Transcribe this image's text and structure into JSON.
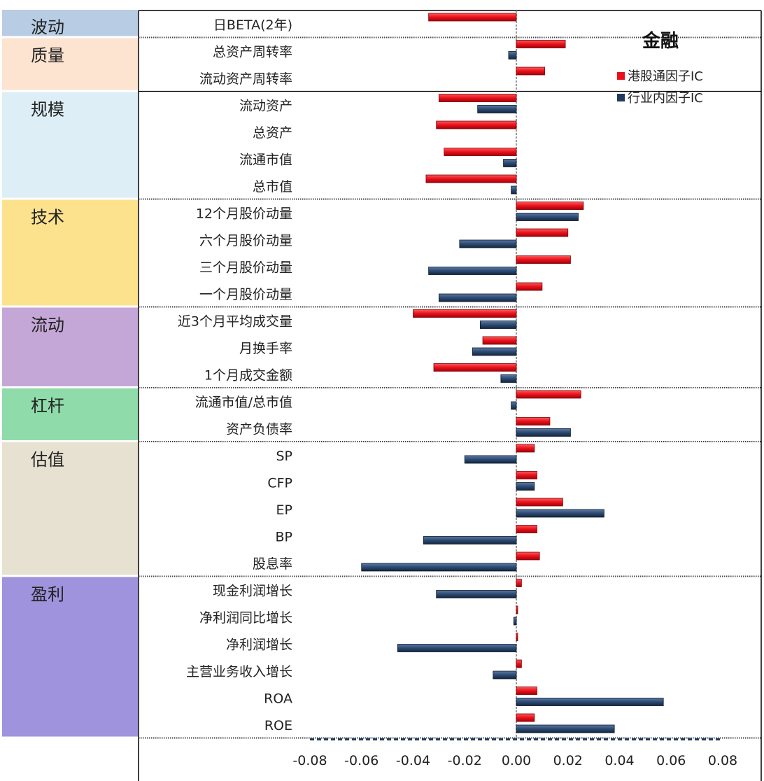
{
  "chart_data": {
    "type": "bar",
    "orientation": "horizontal",
    "title": "金融",
    "xlim": [
      -0.08,
      0.08
    ],
    "x_ticks": [
      "-0.08",
      "-0.06",
      "-0.04",
      "-0.02",
      "0.00",
      "0.02",
      "0.04",
      "0.06",
      "0.08"
    ],
    "x_tick_values": [
      -0.08,
      -0.06,
      -0.04,
      -0.02,
      0.0,
      0.02,
      0.04,
      0.06,
      0.08
    ],
    "legend_position": "top-right",
    "categories": [
      "日BETA(2年)",
      "总资产周转率",
      "流动资产周转率",
      "流动资产",
      "总资产",
      "流通市值",
      "总市值",
      "12个月股价动量",
      "六个月股价动量",
      "三个月股价动量",
      "一个月股价动量",
      "近3个月平均成交量",
      "月换手率",
      "1个月成交金额",
      "流通市值/总市值",
      "资产负债率",
      "SP",
      "CFP",
      "EP",
      "BP",
      "股息率",
      "现金利润增长",
      "净利润同比增长",
      "净利润增长",
      "主营业务收入增长",
      "ROA",
      "ROE"
    ],
    "series": [
      {
        "name": "港股通因子IC",
        "color": "#e8111b",
        "values": [
          -0.034,
          0.019,
          0.011,
          -0.03,
          -0.031,
          -0.028,
          -0.035,
          0.026,
          0.02,
          0.021,
          0.01,
          -0.04,
          -0.013,
          -0.032,
          0.025,
          0.013,
          0.007,
          0.008,
          0.018,
          0.008,
          0.009,
          0.002,
          0.0003,
          0.0003,
          0.002,
          0.008,
          0.007
        ]
      },
      {
        "name": "行业内因子IC",
        "color": "#1f3b5e",
        "values": [
          0.0,
          -0.003,
          0.0,
          -0.015,
          0.0,
          -0.005,
          -0.002,
          0.024,
          -0.022,
          -0.034,
          -0.03,
          -0.014,
          -0.017,
          -0.006,
          -0.002,
          0.021,
          -0.02,
          0.007,
          0.034,
          -0.036,
          -0.06,
          -0.031,
          -0.001,
          -0.046,
          -0.009,
          0.057,
          0.038
        ]
      }
    ],
    "groups": [
      {
        "label": "波动",
        "color": "#b8cce4",
        "count": 1
      },
      {
        "label": "质量",
        "color": "#fde4d0",
        "count": 2
      },
      {
        "label": "规模",
        "color": "#ddeef6",
        "count": 4
      },
      {
        "label": "技术",
        "color": "#fde28e",
        "count": 4
      },
      {
        "label": "流动",
        "color": "#c4a7d7",
        "count": 3
      },
      {
        "label": "杠杆",
        "color": "#8fdcaa",
        "count": 2
      },
      {
        "label": "估值",
        "color": "#e6e1d0",
        "count": 5
      },
      {
        "label": "盈利",
        "color": "#9e93dc",
        "count": 6
      }
    ]
  }
}
